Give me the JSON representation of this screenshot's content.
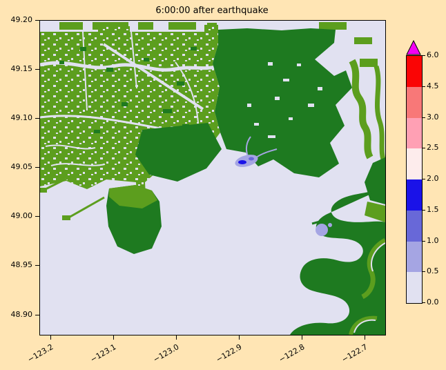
{
  "figure": {
    "background": "#ffe5b4"
  },
  "chart_data": {
    "type": "heatmap",
    "title": "6:00:00 after earthquake",
    "xlabel": "",
    "ylabel": "",
    "xlim": [
      -123.218,
      -122.668
    ],
    "ylim": [
      48.88,
      49.2
    ],
    "grid": false,
    "legend_position": "right-colorbar",
    "x_ticks": {
      "values": [
        -123.2,
        -123.1,
        -123.0,
        -122.9,
        -122.8,
        -122.7
      ],
      "labels": [
        "−123.2",
        "−123.1",
        "−123.0",
        "−122.9",
        "−122.8",
        "−122.7"
      ]
    },
    "y_ticks": {
      "values": [
        49.2,
        49.15,
        49.1,
        49.05,
        49.0,
        48.95,
        48.9
      ],
      "labels": [
        "49.20",
        "49.15",
        "49.10",
        "49.05",
        "49.00",
        "48.95",
        "48.90"
      ]
    },
    "colorbar": {
      "orientation": "vertical",
      "boundaries": [
        0.0,
        0.5,
        1.0,
        1.5,
        2.0,
        2.5,
        3.0,
        4.5,
        6.0
      ],
      "tick_labels": [
        "0.0",
        "0.5",
        "1.0",
        "1.5",
        "2.0",
        "2.5",
        "3.0",
        "4.5",
        "6.0"
      ],
      "colors_bottom_to_top": [
        "#e1e1f1",
        "#a5a5e3",
        "#6868d8",
        "#1a12e8",
        "#fdecec",
        "#ffa0b4",
        "#f87878",
        "#fa0505"
      ],
      "over_color": "#f400f4",
      "has_over_triangle": true
    },
    "map": {
      "water_color": "#e1e1f1",
      "lowland_color": "#5c9e1e",
      "upland_color": "#1e7a20",
      "flood_shallow_color": "#a5a5e3",
      "flood_medium_color": "#6868d8",
      "flood_deep_color": "#1a12e8"
    }
  }
}
